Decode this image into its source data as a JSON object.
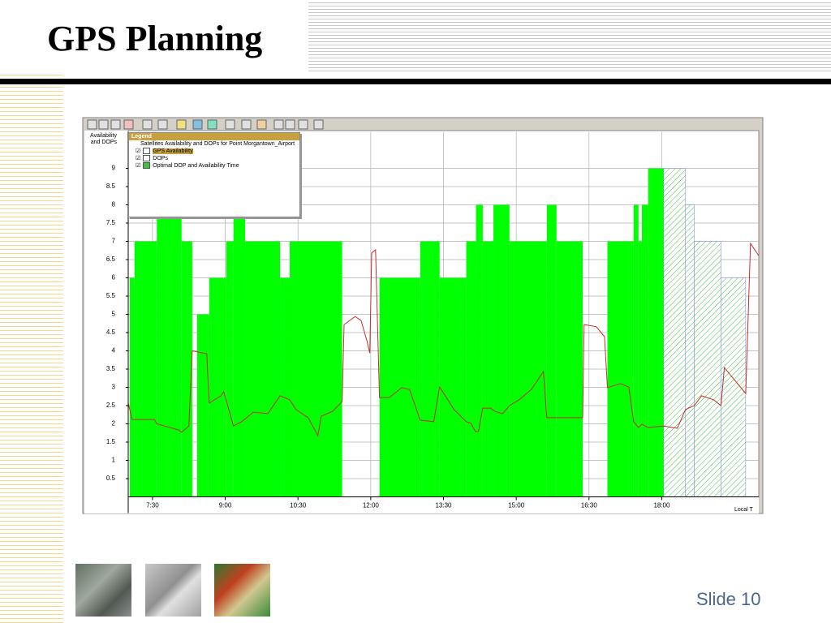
{
  "slide": {
    "title": "GPS Planning",
    "footer": "Slide 10"
  },
  "chart_data": {
    "type": "step",
    "ylabel": "Availability and DOPs",
    "xlabel": "Local T",
    "xlim": [
      7,
      20
    ],
    "ylim": [
      0,
      10
    ],
    "xticks": [
      {
        "value": 7.5,
        "label": "7:30"
      },
      {
        "value": 9,
        "label": "9:00"
      },
      {
        "value": 10.5,
        "label": "10:30"
      },
      {
        "value": 12,
        "label": "12:00"
      },
      {
        "value": 13.5,
        "label": "13:30"
      },
      {
        "value": 15,
        "label": "15:00"
      },
      {
        "value": 16.5,
        "label": "16:30"
      },
      {
        "value": 18,
        "label": "18:00"
      }
    ],
    "yticks": [
      0.5,
      1,
      1.5,
      2,
      2.5,
      3,
      3.5,
      4,
      4.5,
      5,
      5.5,
      6,
      6.5,
      7,
      7.5,
      8,
      8.5,
      9
    ],
    "grid": true,
    "legend_title": "Legend",
    "legend_subtitle": "Satellites Availability and DOPs for Point Morgantown_Airport",
    "legend_extra": "Optimal DOP and Availability Time",
    "hatch_from": 18.04,
    "series": [
      {
        "name": "GPS Availability",
        "color": "#00ff00",
        "kind": "step",
        "x": [
          7.03,
          7.13,
          7.59,
          8.1,
          8.32,
          8.42,
          8.67,
          9.02,
          9.17,
          9.41,
          10.13,
          10.33,
          11.41,
          12.18,
          13.02,
          13.42,
          13.97,
          14.17,
          14.31,
          14.53,
          14.86,
          15.63,
          15.83,
          16.37,
          16.88,
          17.42,
          17.52,
          17.59,
          17.72,
          18.04,
          18.49,
          18.67,
          19.22,
          19.73
        ],
        "values": [
          6,
          7,
          8,
          7,
          0,
          5,
          6,
          7,
          8,
          7,
          6,
          7,
          0,
          6,
          7,
          6,
          7,
          8,
          7,
          8,
          7,
          8,
          7,
          0,
          7,
          8,
          7,
          8,
          9,
          9,
          8,
          7,
          6,
          null
        ]
      },
      {
        "name": "DOPs",
        "color": "#c03030",
        "kind": "line",
        "x": [
          7.0,
          7.08,
          7.54,
          7.59,
          8.04,
          8.1,
          8.25,
          8.32,
          8.62,
          8.67,
          8.91,
          8.97,
          9.17,
          9.34,
          9.58,
          9.88,
          10.13,
          10.33,
          10.46,
          10.71,
          10.91,
          10.98,
          11.21,
          11.41,
          11.45,
          11.68,
          11.8,
          11.92,
          11.98,
          12.02,
          12.1,
          12.18,
          12.38,
          12.64,
          12.8,
          13.02,
          13.3,
          13.42,
          13.72,
          13.97,
          14.06,
          14.16,
          14.22,
          14.31,
          14.47,
          14.56,
          14.72,
          14.86,
          15.06,
          15.31,
          15.56,
          15.63,
          15.83,
          16.37,
          16.4,
          16.65,
          16.82,
          16.88,
          17.15,
          17.32,
          17.42,
          17.52,
          17.59,
          17.72,
          18.04,
          18.32,
          18.49,
          18.67,
          18.82,
          19.07,
          19.22,
          19.29,
          19.73,
          19.83,
          20.0
        ],
        "values": [
          2.57,
          2.12,
          2.12,
          2.0,
          1.83,
          1.77,
          1.94,
          4.0,
          3.92,
          2.57,
          2.77,
          2.88,
          1.94,
          2.06,
          2.32,
          2.28,
          2.77,
          2.66,
          2.39,
          2.17,
          1.68,
          2.21,
          2.34,
          2.61,
          4.72,
          4.94,
          4.83,
          4.28,
          3.94,
          6.68,
          6.77,
          2.72,
          2.72,
          2.99,
          2.94,
          2.1,
          2.06,
          3.01,
          2.39,
          2.06,
          2.02,
          1.79,
          1.79,
          2.43,
          2.43,
          2.34,
          2.28,
          2.5,
          2.66,
          2.94,
          3.43,
          2.17,
          2.17,
          2.17,
          4.72,
          4.66,
          4.39,
          2.99,
          3.1,
          3.01,
          2.06,
          1.9,
          1.99,
          1.9,
          1.94,
          1.88,
          2.39,
          2.5,
          2.77,
          2.66,
          2.5,
          3.54,
          2.83,
          6.94,
          6.61
        ]
      }
    ]
  }
}
